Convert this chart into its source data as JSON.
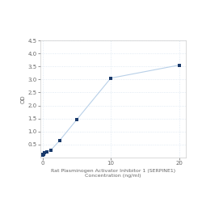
{
  "x_data": [
    0.0,
    0.078,
    0.156,
    0.313,
    0.625,
    1.25,
    2.5,
    5,
    10,
    20
  ],
  "y_data": [
    0.105,
    0.118,
    0.138,
    0.175,
    0.22,
    0.29,
    0.65,
    1.45,
    3.05,
    3.55
  ],
  "line_color": "#b8d0e8",
  "marker_color": "#1a3a6b",
  "marker_size": 3,
  "marker_style": "s",
  "xlabel_line1": "Rat Plasminogen Activator Inhibitor 1 (SERPINE1)",
  "xlabel_line2": "Concentration (ng/ml)",
  "ylabel": "OD",
  "xlim": [
    -0.3,
    21
  ],
  "ylim": [
    0,
    4.5
  ],
  "yticks": [
    0.5,
    1.0,
    1.5,
    2.0,
    2.5,
    3.0,
    3.5,
    4.0,
    4.5
  ],
  "xticks": [
    0,
    10,
    20
  ],
  "grid_color": "#d8e4f0",
  "background_color": "#ffffff",
  "xlabel_fontsize": 4.5,
  "ylabel_fontsize": 5,
  "tick_fontsize": 5
}
